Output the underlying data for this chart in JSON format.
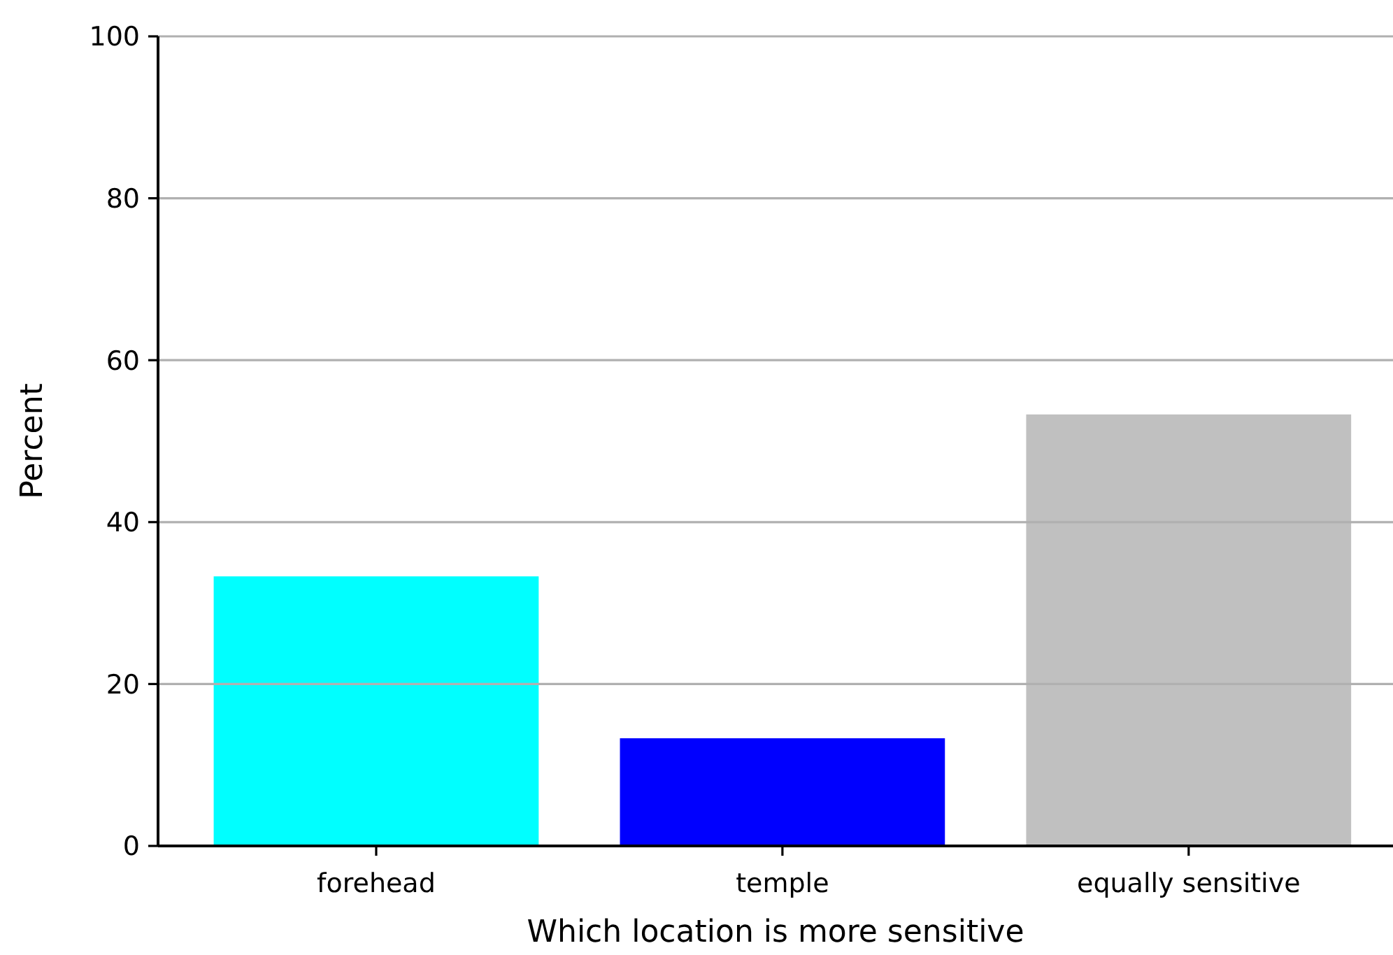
{
  "chart_data": {
    "type": "bar",
    "xlabel": "Which location is more sensitive",
    "ylabel": "Percent",
    "categories": [
      "forehead",
      "temple",
      "equally sensitive"
    ],
    "values": [
      33.3,
      13.3,
      53.3
    ],
    "colors": [
      "#00ffff",
      "#0000ff",
      "#c0c0c0"
    ],
    "ylim": [
      0,
      100
    ],
    "yticks": [
      0,
      20,
      40,
      60,
      80,
      100
    ],
    "grid": "y"
  }
}
